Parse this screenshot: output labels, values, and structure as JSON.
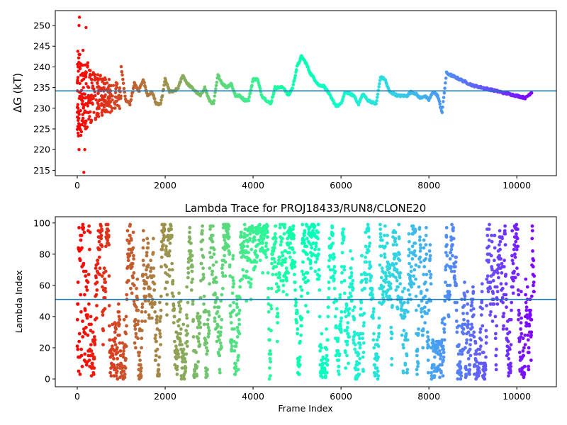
{
  "chart_data": [
    {
      "type": "scatter",
      "title": "",
      "xlabel": "",
      "ylabel": "ΔG (kT)",
      "xlim": [
        -500,
        10900
      ],
      "ylim": [
        213.7,
        253.6
      ],
      "xticks": [
        0,
        2000,
        4000,
        6000,
        8000,
        10000
      ],
      "xtick_labels": [
        "0",
        "2000",
        "4000",
        "6000",
        "8000",
        "10000"
      ],
      "yticks": [
        215,
        220,
        225,
        230,
        235,
        240,
        245,
        250
      ],
      "ytick_labels": [
        "215",
        "220",
        "225",
        "230",
        "235",
        "240",
        "245",
        "250"
      ],
      "hline": 234.2,
      "hline_color": "#1f77b4",
      "colormap": "rainbow (red at frame 0 → purple at last frame)",
      "grid": false,
      "trace_keypoints": {
        "x": [
          1000,
          1100,
          1200,
          1300,
          1400,
          1500,
          1600,
          1700,
          1800,
          1900,
          2000,
          2100,
          2200,
          2300,
          2400,
          2500,
          2600,
          2700,
          2800,
          2900,
          3000,
          3100,
          3200,
          3300,
          3400,
          3500,
          3600,
          3700,
          3800,
          3900,
          4000,
          4100,
          4200,
          4300,
          4400,
          4500,
          4600,
          4700,
          4800,
          4900,
          5000,
          5100,
          5200,
          5300,
          5400,
          5500,
          5600,
          5700,
          5800,
          5900,
          6000,
          6100,
          6200,
          6300,
          6400,
          6500,
          6600,
          6700,
          6800,
          6900,
          7000,
          7100,
          7200,
          7300,
          7400,
          7500,
          7600,
          7700,
          7800,
          7900,
          8000,
          8100,
          8200,
          8300,
          8400,
          8500,
          8600,
          8700,
          8800,
          8900,
          9000,
          9200,
          9400,
          9600,
          9800,
          10000,
          10200,
          10350
        ],
        "y": [
          240,
          232,
          231,
          236,
          234,
          237,
          233,
          234,
          231,
          231,
          237,
          234,
          234,
          235,
          238,
          236,
          235,
          234,
          233,
          235,
          232,
          231,
          238,
          236,
          235,
          236,
          233,
          233,
          232,
          232,
          237,
          237,
          233,
          232,
          231,
          235,
          235,
          235,
          233,
          235,
          240,
          242.5,
          241,
          238.5,
          237,
          235.5,
          235.5,
          234,
          232,
          230.5,
          231,
          234,
          233.5,
          233,
          231,
          233.5,
          232,
          231.5,
          231,
          237.5,
          237,
          234,
          233.5,
          233,
          233,
          233,
          234,
          233.5,
          232.5,
          233,
          232,
          234,
          233,
          229,
          238.5,
          238,
          237.5,
          237,
          236.5,
          236,
          235.5,
          235,
          234.5,
          234,
          233.5,
          233,
          232.5,
          234
        ]
      },
      "initial_scatter": {
        "x": [
          20,
          20,
          40,
          40,
          50,
          60,
          30,
          20,
          60,
          70,
          80,
          100,
          120,
          110,
          130,
          150,
          170,
          140,
          190,
          200,
          220,
          240,
          260,
          280,
          300,
          320,
          350,
          380,
          400,
          430,
          460,
          500,
          550,
          600,
          650,
          700,
          750,
          800,
          850,
          900,
          950
        ],
        "y": [
          240,
          230,
          250,
          220,
          252,
          236,
          229,
          224,
          243,
          226,
          238,
          232,
          231,
          227,
          244,
          214.5,
          220,
          235,
          225,
          249.5,
          229,
          241,
          235,
          228,
          233,
          237,
          231,
          229,
          234,
          232,
          236,
          230,
          233,
          235,
          231,
          234,
          229,
          232,
          230,
          235,
          233
        ]
      }
    },
    {
      "type": "scatter",
      "title": "Lambda Trace for PROJ18433/RUN8/CLONE20",
      "xlabel": "Frame Index",
      "ylabel": "Lambda Index",
      "xlim": [
        -500,
        10900
      ],
      "ylim": [
        -5,
        104
      ],
      "xticks": [
        0,
        2000,
        4000,
        6000,
        8000,
        10000
      ],
      "xtick_labels": [
        "0",
        "2000",
        "4000",
        "6000",
        "8000",
        "10000"
      ],
      "yticks": [
        0,
        20,
        40,
        60,
        80,
        100
      ],
      "ytick_labels": [
        "0",
        "20",
        "40",
        "60",
        "80",
        "100"
      ],
      "hline": 51,
      "hline_color": "#1f77b4",
      "colormap": "rainbow (red at frame 0 → purple at last frame)",
      "grid": false,
      "n_frames": 10400,
      "lambda_range": [
        0,
        99
      ],
      "sparse_gap": {
        "x": [
          8050,
          8300
        ],
        "lambda_max": 25
      }
    }
  ]
}
